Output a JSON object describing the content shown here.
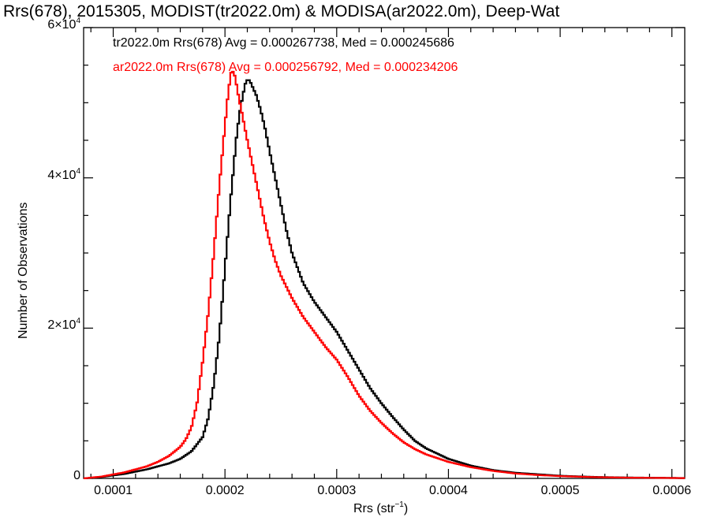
{
  "chart_data": {
    "type": "line",
    "title": "Rrs(678), 2015305, MODIST(tr2022.0m) & MODISA(ar2022.0m), Deep-Wat",
    "xlabel_main": "Rrs (str",
    "xlabel_sup": "−1",
    "xlabel_close": ")",
    "ylabel": "Number of Observations",
    "xlim": [
      7.35e-05,
      0.0006115
    ],
    "ylim": [
      0,
      60000
    ],
    "x_ticks": [
      {
        "value": 0.0001,
        "label": "0.0001"
      },
      {
        "value": 0.0002,
        "label": "0.0002"
      },
      {
        "value": 0.0003,
        "label": "0.0003"
      },
      {
        "value": 0.0004,
        "label": "0.0004"
      },
      {
        "value": 0.0005,
        "label": "0.0005"
      },
      {
        "value": 0.0006,
        "label": "0.0006"
      }
    ],
    "y_ticks": [
      {
        "value": 0,
        "base": "0",
        "exp": ""
      },
      {
        "value": 20000,
        "base": "2×10",
        "exp": "4"
      },
      {
        "value": 40000,
        "base": "4×10",
        "exp": "4"
      },
      {
        "value": 60000,
        "base": "6×10",
        "exp": "4"
      }
    ],
    "series": [
      {
        "name": "tr2022.0m Rrs(678) Avg = 0.000267738, Med = 0.000245686",
        "color": "#000000",
        "points": [
          [
            7.35e-05,
            0
          ],
          [
            9e-05,
            200
          ],
          [
            0.00011,
            600
          ],
          [
            0.00013,
            1200
          ],
          [
            0.00015,
            2000
          ],
          [
            0.00016,
            2600
          ],
          [
            0.00017,
            3600
          ],
          [
            0.00018,
            5500
          ],
          [
            0.000185,
            8000
          ],
          [
            0.00019,
            12500
          ],
          [
            0.000195,
            19000
          ],
          [
            0.0002,
            28000
          ],
          [
            0.000205,
            37000
          ],
          [
            0.00021,
            45000
          ],
          [
            0.000213,
            48500
          ],
          [
            0.000216,
            51000
          ],
          [
            0.000219,
            53000
          ],
          [
            0.000222,
            53000
          ],
          [
            0.000225,
            52000
          ],
          [
            0.000228,
            51000
          ],
          [
            0.000232,
            49000
          ],
          [
            0.000236,
            46500
          ],
          [
            0.00024,
            43500
          ],
          [
            0.000245,
            40000
          ],
          [
            0.00025,
            36500
          ],
          [
            0.000255,
            33000
          ],
          [
            0.00026,
            30000
          ],
          [
            0.00027,
            26000
          ],
          [
            0.00028,
            23500
          ],
          [
            0.00029,
            21500
          ],
          [
            0.0003,
            19500
          ],
          [
            0.00031,
            17000
          ],
          [
            0.00032,
            14500
          ],
          [
            0.00033,
            12000
          ],
          [
            0.00034,
            10000
          ],
          [
            0.00035,
            8200
          ],
          [
            0.00036,
            6500
          ],
          [
            0.00037,
            5000
          ],
          [
            0.00038,
            4000
          ],
          [
            0.0004,
            2600
          ],
          [
            0.00042,
            1700
          ],
          [
            0.00044,
            1100
          ],
          [
            0.00046,
            750
          ],
          [
            0.00048,
            550
          ],
          [
            0.0005,
            350
          ],
          [
            0.00053,
            200
          ],
          [
            0.00056,
            120
          ],
          [
            0.0006115,
            50
          ]
        ]
      },
      {
        "name": "ar2022.0m Rrs(678) Avg = 0.000256792, Med = 0.000234206",
        "color": "#ff0000",
        "points": [
          [
            7.35e-05,
            0
          ],
          [
            9e-05,
            250
          ],
          [
            0.00011,
            800
          ],
          [
            0.00013,
            1600
          ],
          [
            0.00014,
            2200
          ],
          [
            0.00015,
            3000
          ],
          [
            0.00016,
            4200
          ],
          [
            0.000165,
            5200
          ],
          [
            0.00017,
            6800
          ],
          [
            0.000175,
            10000
          ],
          [
            0.00018,
            15500
          ],
          [
            0.000185,
            22000
          ],
          [
            0.00019,
            30000
          ],
          [
            0.000195,
            39000
          ],
          [
            0.0002,
            47000
          ],
          [
            0.000203,
            51500
          ],
          [
            0.000206,
            54500
          ],
          [
            0.000209,
            53500
          ],
          [
            0.000212,
            51000
          ],
          [
            0.000216,
            48000
          ],
          [
            0.00022,
            45000
          ],
          [
            0.000225,
            41500
          ],
          [
            0.00023,
            38000
          ],
          [
            0.000235,
            34500
          ],
          [
            0.00024,
            31500
          ],
          [
            0.000245,
            29000
          ],
          [
            0.00025,
            27000
          ],
          [
            0.00026,
            24000
          ],
          [
            0.00027,
            21500
          ],
          [
            0.00028,
            19500
          ],
          [
            0.00029,
            17500
          ],
          [
            0.0003,
            15800
          ],
          [
            0.00031,
            13500
          ],
          [
            0.00032,
            11000
          ],
          [
            0.00033,
            9000
          ],
          [
            0.00034,
            7400
          ],
          [
            0.00035,
            6000
          ],
          [
            0.00036,
            4800
          ],
          [
            0.00037,
            3900
          ],
          [
            0.00038,
            3200
          ],
          [
            0.0004,
            2200
          ],
          [
            0.00042,
            1500
          ],
          [
            0.00044,
            1000
          ],
          [
            0.00046,
            650
          ],
          [
            0.00048,
            450
          ],
          [
            0.0005,
            300
          ],
          [
            0.00053,
            170
          ],
          [
            0.00056,
            100
          ],
          [
            0.0006115,
            40
          ]
        ]
      }
    ],
    "legend_placement": "top-left",
    "grid": false
  }
}
